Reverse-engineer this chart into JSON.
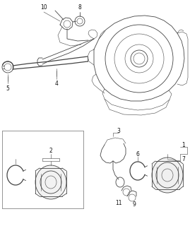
{
  "bg_color": "#ffffff",
  "line_color": "#444444",
  "label_color": "#111111",
  "fig_width": 2.69,
  "fig_height": 3.2,
  "dpi": 100
}
